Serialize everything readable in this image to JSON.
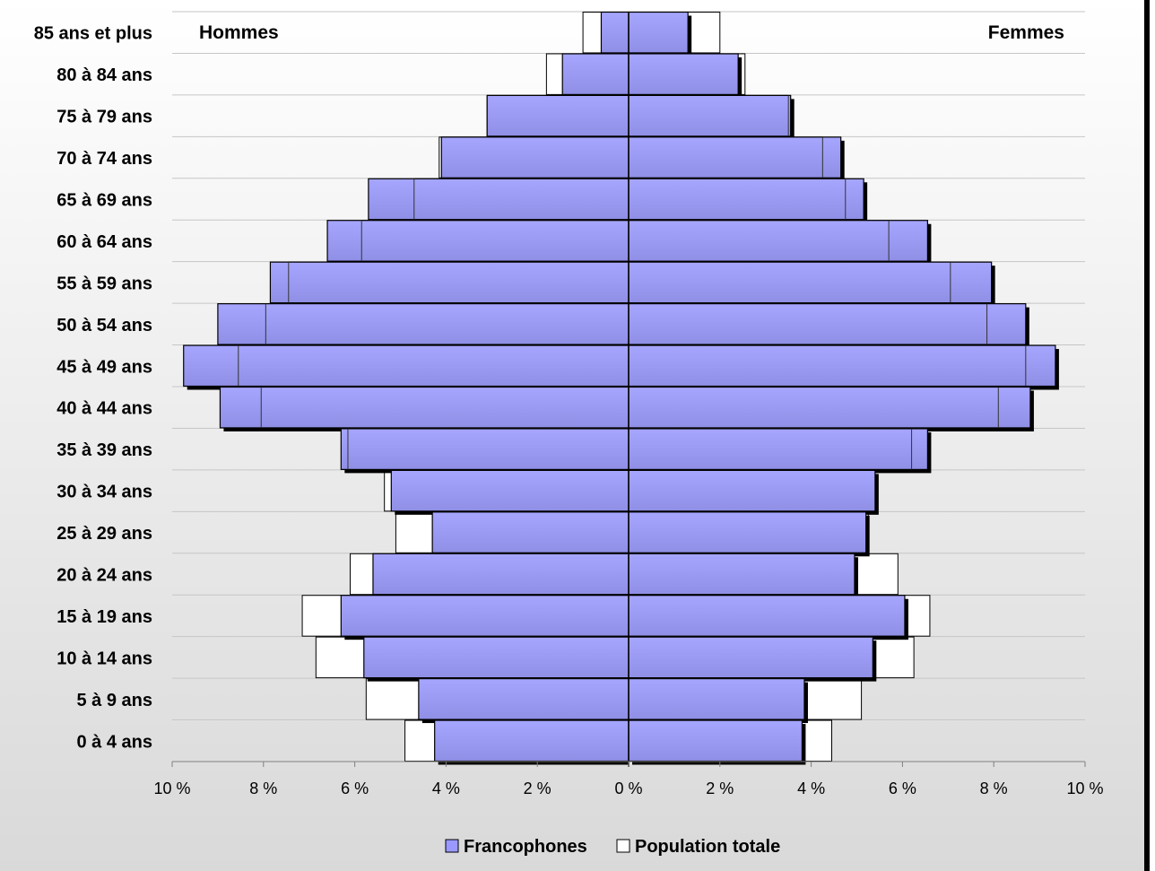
{
  "chart_data": {
    "type": "bar",
    "orientation": "horizontal",
    "layout": "population-pyramid",
    "side_labels": {
      "left": "Hommes",
      "right": "Femmes"
    },
    "categories": [
      "85 ans et plus",
      "80 à 84 ans",
      "75 à 79 ans",
      "70 à 74 ans",
      "65 à 69 ans",
      "60 à 64 ans",
      "55 à 59 ans",
      "50 à 54 ans",
      "45 à 49 ans",
      "40 à 44 ans",
      "35 à 39 ans",
      "30 à 34 ans",
      "25 à 29 ans",
      "20 à 24 ans",
      "15 à 19 ans",
      "10 à 14 ans",
      "5 à 9 ans",
      "0 à 4 ans"
    ],
    "series": [
      {
        "name": "Francophones",
        "color": "#9999ff",
        "hommes": [
          0.6,
          1.45,
          3.1,
          4.1,
          5.7,
          6.6,
          7.85,
          9.0,
          9.75,
          8.95,
          6.3,
          5.2,
          4.3,
          5.6,
          6.3,
          5.8,
          4.6,
          4.25
        ],
        "femmes": [
          1.3,
          2.4,
          3.55,
          4.65,
          5.15,
          6.55,
          7.95,
          8.7,
          9.35,
          8.8,
          6.55,
          5.4,
          5.2,
          4.95,
          6.05,
          5.35,
          3.85,
          3.8
        ]
      },
      {
        "name": "Population totale",
        "color": "#ffffff",
        "hommes": [
          1.0,
          1.8,
          3.1,
          4.15,
          4.7,
          5.85,
          7.45,
          7.95,
          8.55,
          8.05,
          6.15,
          5.35,
          5.1,
          6.1,
          7.15,
          6.85,
          5.75,
          4.9
        ],
        "femmes": [
          2.0,
          2.55,
          3.5,
          4.25,
          4.75,
          5.7,
          7.05,
          7.85,
          8.7,
          8.1,
          6.2,
          5.4,
          5.25,
          5.9,
          6.6,
          6.25,
          5.1,
          4.45
        ]
      }
    ],
    "xlim": [
      -10,
      10
    ],
    "xticks": [
      "10 %",
      "8 %",
      "6 %",
      "4 %",
      "2 %",
      "0 %",
      "2 %",
      "4 %",
      "6 %",
      "8 %",
      "10 %"
    ],
    "grid": true,
    "legend": {
      "position": "bottom",
      "items": [
        {
          "label": "Francophones",
          "color": "#9999ff"
        },
        {
          "label": "Population totale",
          "color": "#ffffff"
        }
      ]
    },
    "background_gradient": [
      "#ffffff",
      "#d9d9d9"
    ]
  }
}
